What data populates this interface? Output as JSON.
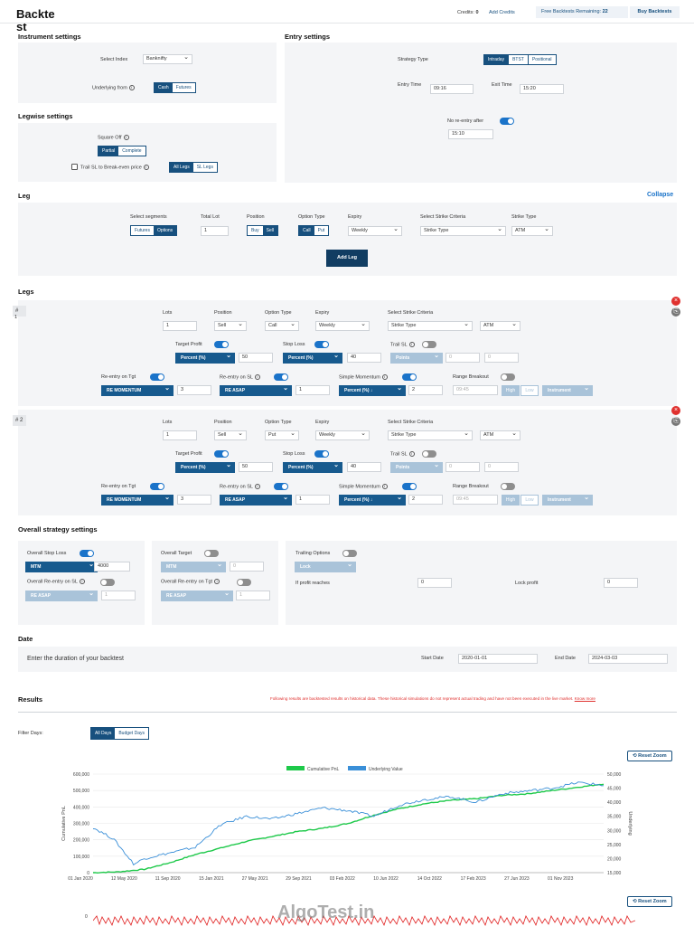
{
  "header": {
    "logo_line1": "Backte",
    "logo_line2": "st",
    "credits_label": "Credits:",
    "credits_value": "0",
    "add_credits": "Add Credits",
    "free_label": "Free Backtests Remaining:",
    "free_value": "22",
    "buy": "Buy Backtests"
  },
  "instrument": {
    "title": "Instrument settings",
    "select_index_label": "Select Index",
    "select_index_value": "Banknifty",
    "underlying_label": "Underlying from",
    "cash": "Cash",
    "futures": "Futures"
  },
  "entry": {
    "title": "Entry settings",
    "strategy_type_label": "Strategy Type",
    "intraday": "Intraday",
    "btst": "BTST",
    "positional": "Positional",
    "entry_time_label": "Entry Time",
    "entry_time": "09:16",
    "exit_time_label": "Exit Time",
    "exit_time": "15:20",
    "no_reentry_label": "No re-entry after",
    "no_reentry_time": "15:10"
  },
  "legwise": {
    "title": "Legwise settings",
    "square_off_label": "Square Off",
    "partial": "Partial",
    "complete": "Complete",
    "trail_label": "Trail SL to Break-even price",
    "all_legs": "All Legs",
    "sl_legs": "SL Legs"
  },
  "leg_builder": {
    "title": "Leg",
    "collapse": "Collapse",
    "seg_label": "Select segments",
    "futures": "Futures",
    "options": "Options",
    "total_lot_label": "Total Lot",
    "total_lot": "1",
    "position_label": "Position",
    "buy": "Buy",
    "sell": "Sell",
    "option_type_label": "Option Type",
    "call": "Call",
    "put": "Put",
    "expiry_label": "Expiry",
    "expiry": "Weekly",
    "strike_criteria_label": "Select Strike Criteria",
    "strike_criteria": "Strike Type",
    "strike_type_label": "Strike Type",
    "strike_type": "ATM",
    "add_leg": "Add Leg"
  },
  "legs": {
    "title": "Legs",
    "labels": {
      "lots": "Lots",
      "position": "Position",
      "option_type": "Option Type",
      "expiry": "Expiry",
      "strike": "Select Strike Criteria",
      "target_profit": "Target Profit",
      "stop_loss": "Stop Loss",
      "trail_sl": "Trail SL",
      "reentry_tgt": "Re-entry on Tgt",
      "reentry_sl": "Re-entry on SL",
      "simple_momentum": "Simple Momentum",
      "range_breakout": "Range Breakout",
      "percent": "Percent (%)",
      "points": "Points",
      "high": "High",
      "low": "Low",
      "instrument": "Instrument"
    },
    "items": [
      {
        "num": "#",
        "sub": "1",
        "lots": "1",
        "position": "Sell",
        "option_type": "Call",
        "expiry": "Weekly",
        "strike": "Strike Type",
        "strike_type": "ATM",
        "tp": "50",
        "sl": "40",
        "trail1": "0",
        "trail2": "0",
        "re_tgt_mode": "RE MOMENTUM",
        "re_tgt_val": "3",
        "re_sl_mode": "RE ASAP",
        "re_sl_val": "1",
        "mom_mode": "Percent (%) ↓",
        "mom_val": "2",
        "rb_time": "09:45"
      },
      {
        "num": "# 2",
        "sub": "",
        "lots": "1",
        "position": "Sell",
        "option_type": "Put",
        "expiry": "Weekly",
        "strike": "Strike Type",
        "strike_type": "ATM",
        "tp": "50",
        "sl": "40",
        "trail1": "0",
        "trail2": "0",
        "re_tgt_mode": "RE MOMENTUM",
        "re_tgt_val": "3",
        "re_sl_mode": "RE ASAP",
        "re_sl_val": "1",
        "mom_mode": "Percent (%) ↓",
        "mom_val": "2",
        "rb_time": "09:45"
      }
    ]
  },
  "overall": {
    "title": "Overall strategy settings",
    "stop_loss_label": "Overall Stop Loss",
    "stop_loss_mode": "MTM",
    "stop_loss_val": "4000",
    "reentry_sl_label": "Overall Re-entry on SL",
    "reentry_sl_mode": "RE ASAP",
    "reentry_sl_val": "1",
    "target_label": "Overall Target",
    "target_mode": "MTM",
    "target_val": "0",
    "reentry_tgt_label": "Overall Re-entry on Tgt",
    "reentry_tgt_mode": "RE ASAP",
    "reentry_tgt_val": "1",
    "trailing_label": "Trailing Options",
    "trailing_mode": "Lock",
    "if_profit_label": "If profit reaches",
    "if_profit_val": "0",
    "lock_profit_label": "Lock profit",
    "lock_profit_val": "0"
  },
  "date": {
    "title": "Date",
    "prompt": "Enter the duration of your backtest",
    "start_label": "Start Date",
    "start": "2020-01-01",
    "end_label": "End Date",
    "end": "2024-03-03"
  },
  "results": {
    "title": "Results",
    "disclaimer": "Following results are backtested results on historical data. These historical simulations do not represent actual trading and have not been executed in the live market.",
    "know_more": "Know more",
    "filter_label": "Filter Days:",
    "all_days": "All Days",
    "budget_days": "Budget Days",
    "reset_zoom": "Reset Zoom",
    "watermark": "AlgoTest.in"
  },
  "chart_data": {
    "type": "line",
    "legend": [
      "Cumulative PnL",
      "Underlying Value"
    ],
    "x_ticks": [
      "01 Jan 2020",
      "12 May 2020",
      "11 Sep 2020",
      "15 Jan 2021",
      "27 May 2021",
      "29 Sep 2021",
      "03 Feb 2022",
      "10 Jun 2022",
      "14 Oct 2022",
      "17 Feb 2023",
      "27 Jun 2023",
      "01 Nov 2023"
    ],
    "y_left_ticks": [
      "0",
      "100,000",
      "200,000",
      "300,000",
      "400,000",
      "500,000",
      "600,000"
    ],
    "y_right_ticks": [
      "15,000",
      "20,000",
      "25,000",
      "30,000",
      "35,000",
      "40,000",
      "45,000",
      "50,000"
    ],
    "ylabel_left": "Cumulative PnL",
    "ylabel_right": "Underlying",
    "ylim_left": [
      0,
      600000
    ],
    "ylim_right": [
      15000,
      50000
    ],
    "series": [
      {
        "name": "Cumulative PnL",
        "color": "#1ec94a",
        "x": [
          0,
          0.05,
          0.1,
          0.15,
          0.2,
          0.25,
          0.3,
          0.35,
          0.4,
          0.45,
          0.5,
          0.55,
          0.6,
          0.65,
          0.7,
          0.75,
          0.8,
          0.85,
          0.9,
          0.95,
          1.0
        ],
        "values": [
          0,
          5000,
          20000,
          60000,
          110000,
          150000,
          190000,
          220000,
          250000,
          270000,
          300000,
          350000,
          390000,
          420000,
          440000,
          450000,
          470000,
          480000,
          500000,
          520000,
          540000
        ]
      },
      {
        "name": "Underlying Value",
        "color": "#3a8fd8",
        "x": [
          0,
          0.04,
          0.08,
          0.1,
          0.15,
          0.2,
          0.25,
          0.3,
          0.35,
          0.4,
          0.45,
          0.5,
          0.55,
          0.6,
          0.65,
          0.7,
          0.75,
          0.8,
          0.85,
          0.9,
          0.95,
          1.0
        ],
        "values": [
          31000,
          27000,
          18000,
          20000,
          22000,
          24000,
          32000,
          35000,
          34000,
          36000,
          38000,
          37000,
          35000,
          39000,
          41000,
          42000,
          40000,
          43000,
          44000,
          45000,
          47000,
          46000
        ]
      }
    ]
  },
  "colors": {
    "accent": "#17507e",
    "toggle": "#1a73c9",
    "pnl": "#1ec94a",
    "underlying": "#3a8fd8",
    "disclaimer": "#e0312f"
  }
}
